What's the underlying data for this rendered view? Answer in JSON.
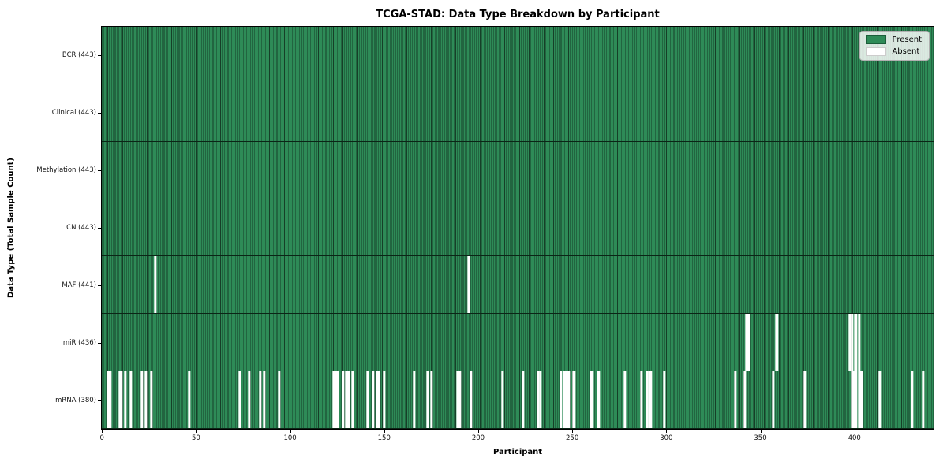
{
  "title": "TCGA-STAD: Data Type Breakdown by Participant",
  "xlabel": "Participant",
  "ylabel": "Data Type (Total Sample Count)",
  "legend": {
    "present_label": "Present",
    "absent_label": "Absent"
  },
  "chart_data": {
    "type": "heatmap",
    "title": "TCGA-STAD: Data Type Breakdown by Participant",
    "xlabel": "Participant",
    "ylabel": "Data Type (Total Sample Count)",
    "n_participants": 443,
    "xlim": [
      -0.5,
      442.5
    ],
    "x_ticks": [
      0,
      50,
      100,
      150,
      200,
      250,
      300,
      350,
      400
    ],
    "grid": false,
    "legend_position": "upper right",
    "legend_entries": [
      {
        "label": "Present",
        "color": "#2e8b57"
      },
      {
        "label": "Absent",
        "color": "#ffffff"
      }
    ],
    "colors": {
      "present": "#2e8b57",
      "absent": "#ffffff",
      "bar_edge": "#163f28"
    },
    "rows": [
      {
        "data_type": "BCR",
        "label": "BCR (443)",
        "present_count": 443,
        "absent_participants": []
      },
      {
        "data_type": "Clinical",
        "label": "Clinical (443)",
        "present_count": 443,
        "absent_participants": []
      },
      {
        "data_type": "Methylation",
        "label": "Methylation (443)",
        "present_count": 443,
        "absent_participants": []
      },
      {
        "data_type": "CN",
        "label": "CN (443)",
        "present_count": 443,
        "absent_participants": []
      },
      {
        "data_type": "MAF",
        "label": "MAF (441)",
        "present_count": 441,
        "absent_participants": [
          28,
          195
        ]
      },
      {
        "data_type": "miR",
        "label": "miR (436)",
        "present_count": 436,
        "absent_participants": [
          343,
          344,
          359,
          398,
          399,
          401,
          403
        ]
      },
      {
        "data_type": "mRNA",
        "label": "mRNA (380)",
        "present_count": 380,
        "absent_participants": [
          3,
          4,
          9,
          10,
          12,
          15,
          21,
          23,
          26,
          46,
          73,
          78,
          84,
          86,
          94,
          123,
          124,
          125,
          128,
          130,
          131,
          133,
          141,
          144,
          146,
          147,
          150,
          166,
          173,
          175,
          189,
          190,
          196,
          213,
          224,
          232,
          233,
          244,
          246,
          247,
          248,
          251,
          260,
          261,
          264,
          278,
          287,
          290,
          291,
          292,
          299,
          337,
          342,
          357,
          374,
          399,
          400,
          401,
          403,
          404,
          414,
          431,
          437
        ]
      }
    ]
  }
}
